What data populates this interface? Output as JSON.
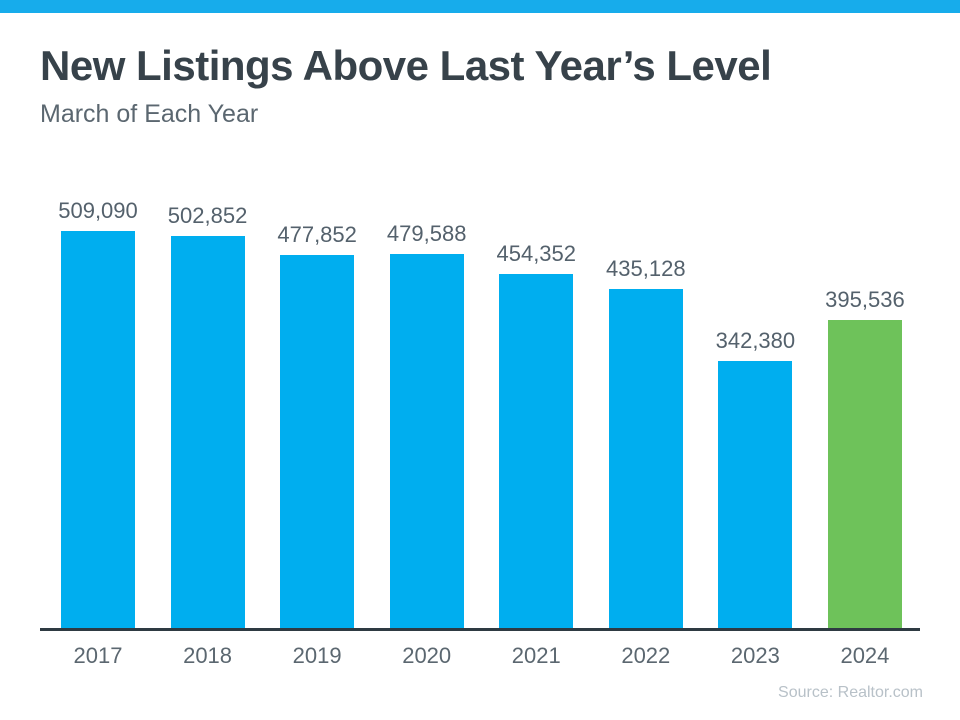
{
  "header": {
    "title": "New Listings Above Last Year’s Level",
    "subtitle": "March of Each Year"
  },
  "chart_data": {
    "type": "bar",
    "title": "New Listings Above Last Year’s Level",
    "subtitle": "March of Each Year",
    "categories": [
      "2017",
      "2018",
      "2019",
      "2020",
      "2021",
      "2022",
      "2023",
      "2024"
    ],
    "values": [
      509090,
      502852,
      477852,
      479588,
      454352,
      435128,
      342380,
      395536
    ],
    "value_labels": [
      "509,090",
      "502,852",
      "477,852",
      "479,588",
      "454,352",
      "435,128",
      "342,380",
      "395,536"
    ],
    "highlight_index": 7,
    "xlabel": "",
    "ylabel": "",
    "ylim": [
      0,
      509090
    ],
    "grid": false,
    "legend": false,
    "data_labels_position": "above-bars",
    "source": "Source: Realtor.com"
  },
  "colors": {
    "top_strip": "#17ACEB",
    "bar_default": "#00AEEF",
    "bar_highlight": "#6EC25A",
    "title_text": "#37424A",
    "subtitle_text": "#5B6770",
    "value_label": "#54616C",
    "year_label": "#5B6770",
    "axis_line": "#2E3A42",
    "source_text": "#B8C1C8",
    "background": "#FFFFFF"
  },
  "footer": {
    "source": "Source: Realtor.com"
  }
}
